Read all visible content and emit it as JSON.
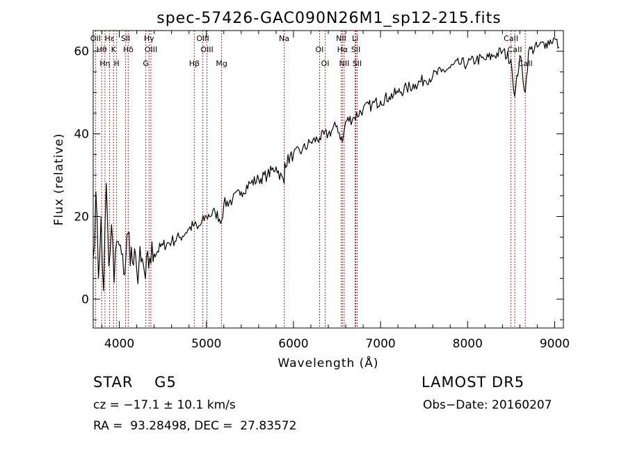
{
  "chart_data": {
    "type": "line",
    "title": "spec-57426-GAC090N26M1_sp12-215.fits",
    "xlabel": "Wavelength (Å)",
    "ylabel": "Flux (relative)",
    "xlim": [
      3700,
      9100
    ],
    "ylim": [
      -7,
      65
    ],
    "xticks": [
      4000,
      5000,
      6000,
      7000,
      8000,
      9000
    ],
    "yticks": [
      0,
      20,
      40,
      60
    ],
    "grid": false,
    "line_color": "#000000",
    "marker_color": "#b22222",
    "series": [
      {
        "x": [
          3700,
          3730,
          3760,
          3790,
          3820,
          3850,
          3880,
          3910,
          3940,
          3970,
          4000,
          4050,
          4100,
          4150,
          4200,
          4250,
          4300,
          4350,
          4400,
          4500,
          4600,
          4700,
          4800,
          4861,
          4900,
          5000,
          5100,
          5175,
          5200,
          5300,
          5400,
          5500,
          5600,
          5700,
          5800,
          5893,
          5900,
          6000,
          6100,
          6200,
          6300,
          6400,
          6500,
          6563,
          6600,
          6700,
          6800,
          6900,
          7000,
          7100,
          7200,
          7300,
          7400,
          7500,
          7600,
          7700,
          7800,
          7900,
          8000,
          8100,
          8200,
          8300,
          8400,
          8498,
          8542,
          8600,
          8662,
          8700,
          8800,
          8900,
          9000,
          9050
        ],
        "y": [
          10,
          26,
          5,
          20,
          2,
          28,
          8,
          18,
          4,
          14,
          13,
          6,
          16,
          9,
          7,
          9,
          5,
          10,
          11,
          13,
          14,
          15,
          17,
          18,
          17,
          20,
          21,
          19,
          23,
          24,
          26,
          28,
          29,
          30,
          32,
          28,
          33,
          35,
          36,
          38,
          39,
          40,
          42,
          38,
          43,
          44,
          46,
          47,
          48,
          49,
          50,
          51,
          52,
          53,
          54,
          55,
          56,
          57,
          57,
          58,
          58,
          59,
          60,
          58,
          49,
          59,
          50,
          60,
          61,
          62,
          63,
          61
        ]
      }
    ],
    "line_markers": [
      {
        "wl": 3727,
        "label": "OII"
      },
      {
        "wl": 3797,
        "label": "Hθ"
      },
      {
        "wl": 3835,
        "label": "Hη"
      },
      {
        "wl": 3889,
        "label": "Hε"
      },
      {
        "wl": 3934,
        "label": "K"
      },
      {
        "wl": 3969,
        "label": "H"
      },
      {
        "wl": 4072,
        "label": "SII"
      },
      {
        "wl": 4102,
        "label": "Hδ"
      },
      {
        "wl": 4304,
        "label": "G"
      },
      {
        "wl": 4341,
        "label": "Hγ"
      },
      {
        "wl": 4363,
        "label": "OIII"
      },
      {
        "wl": 4861,
        "label": "Hβ"
      },
      {
        "wl": 4959,
        "label": "OIII"
      },
      {
        "wl": 5007,
        "label": "OIII"
      },
      {
        "wl": 5175,
        "label": "Mg"
      },
      {
        "wl": 5893,
        "label": "Na"
      },
      {
        "wl": 6300,
        "label": "OI"
      },
      {
        "wl": 6364,
        "label": "OI"
      },
      {
        "wl": 6548,
        "label": "NII"
      },
      {
        "wl": 6563,
        "label": "Hα"
      },
      {
        "wl": 6583,
        "label": "NII"
      },
      {
        "wl": 6708,
        "label": "Li"
      },
      {
        "wl": 6716,
        "label": "SII"
      },
      {
        "wl": 6731,
        "label": "SII"
      },
      {
        "wl": 8498,
        "label": "CaII"
      },
      {
        "wl": 8542,
        "label": "CaII"
      },
      {
        "wl": 8662,
        "label": "CaII"
      }
    ]
  },
  "footer": {
    "object_class": "STAR    G5",
    "survey": "LAMOST DR5",
    "cz": "cz = −17.1 ± 10.1 km/s",
    "obs_date": "Obs−Date: 20160207",
    "radec": "RA =  93.28498, DEC =  27.83572"
  }
}
